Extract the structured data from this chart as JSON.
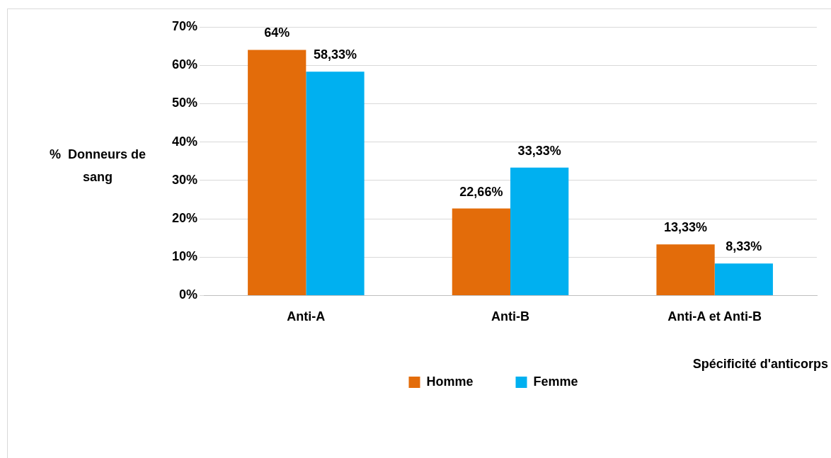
{
  "chart_data": {
    "type": "bar",
    "xlabel": "Spécificité d'anticorps",
    "ylabel": "%  Donneurs de sang",
    "categories": [
      "Anti-A",
      "Anti-B",
      "Anti-A et Anti-B"
    ],
    "series": [
      {
        "name": "Homme",
        "color": "#e36c0a",
        "values": [
          64,
          22.66,
          13.33
        ],
        "value_labels": [
          "64%",
          "22,66%",
          "13,33%"
        ]
      },
      {
        "name": "Femme",
        "color": "#00b0f0",
        "values": [
          58.33,
          33.33,
          8.33
        ],
        "value_labels": [
          "58,33%",
          "33,33%",
          "8,33%"
        ]
      }
    ],
    "ylim": [
      0,
      70
    ],
    "yticks": [
      {
        "value": 0,
        "label": "0%"
      },
      {
        "value": 10,
        "label": "10%"
      },
      {
        "value": 20,
        "label": "20%"
      },
      {
        "value": 30,
        "label": "30%"
      },
      {
        "value": 40,
        "label": "40%"
      },
      {
        "value": 50,
        "label": "50%"
      },
      {
        "value": 60,
        "label": "60%"
      },
      {
        "value": 70,
        "label": "70%"
      }
    ],
    "grid": "y",
    "legend": "bottom"
  }
}
